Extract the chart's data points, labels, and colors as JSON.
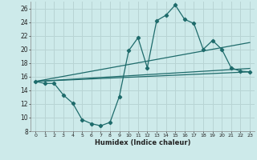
{
  "xlabel": "Humidex (Indice chaleur)",
  "background_color": "#cdeaea",
  "grid_color": "#b8d4d4",
  "line_color": "#1e6b6b",
  "xlim": [
    -0.5,
    23.5
  ],
  "ylim": [
    8,
    27
  ],
  "yticks": [
    8,
    10,
    12,
    14,
    16,
    18,
    20,
    22,
    24,
    26
  ],
  "xticks": [
    0,
    1,
    2,
    3,
    4,
    5,
    6,
    7,
    8,
    9,
    10,
    11,
    12,
    13,
    14,
    15,
    16,
    17,
    18,
    19,
    20,
    21,
    22,
    23
  ],
  "line1_x": [
    0,
    1,
    2,
    3,
    4,
    5,
    6,
    7,
    8,
    9,
    10,
    11,
    12,
    13,
    14,
    15,
    16,
    17,
    18,
    19,
    20,
    21,
    22,
    23
  ],
  "line1_y": [
    15.3,
    15.0,
    15.0,
    13.3,
    12.1,
    9.7,
    9.1,
    8.8,
    9.3,
    13.1,
    19.8,
    21.7,
    17.3,
    24.2,
    25.0,
    26.5,
    24.4,
    23.8,
    20.0,
    21.3,
    20.0,
    17.3,
    16.8,
    16.7
  ],
  "line2_x": [
    0,
    23
  ],
  "line2_y": [
    15.3,
    16.7
  ],
  "line3_x": [
    0,
    23
  ],
  "line3_y": [
    15.3,
    17.2
  ],
  "line4_x": [
    0,
    23
  ],
  "line4_y": [
    15.3,
    21.0
  ]
}
